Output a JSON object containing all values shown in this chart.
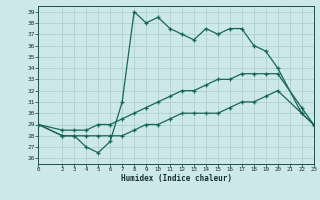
{
  "xlabel": "Humidex (Indice chaleur)",
  "bg_color": "#cce8e8",
  "grid_color": "#aacccc",
  "line_color": "#1a6655",
  "xlim": [
    0,
    23
  ],
  "ylim": [
    26,
    39
  ],
  "yticks": [
    26,
    27,
    28,
    29,
    30,
    31,
    32,
    33,
    34,
    35,
    36,
    37,
    38,
    39
  ],
  "xticks": [
    0,
    2,
    3,
    4,
    5,
    6,
    7,
    8,
    9,
    10,
    11,
    12,
    13,
    14,
    15,
    16,
    17,
    18,
    19,
    20,
    21,
    22,
    23
  ],
  "curve1_x": [
    0,
    2,
    3,
    4,
    5,
    6,
    7,
    8,
    9,
    10,
    11,
    12,
    13,
    14,
    15,
    16,
    17,
    18,
    19,
    20,
    22,
    23
  ],
  "curve1_y": [
    29,
    28,
    28,
    27,
    26.5,
    27.5,
    31,
    39,
    38,
    38.5,
    37.5,
    37,
    36.5,
    37.5,
    37,
    37.5,
    37.5,
    36,
    35.5,
    34,
    30,
    29
  ],
  "curve2_x": [
    0,
    2,
    3,
    4,
    5,
    6,
    7,
    8,
    9,
    10,
    11,
    12,
    13,
    14,
    15,
    16,
    17,
    18,
    19,
    20,
    22,
    23
  ],
  "curve2_y": [
    29,
    28.5,
    28.5,
    28.5,
    29,
    29,
    29.5,
    30,
    30.5,
    31,
    31.5,
    32,
    32,
    32.5,
    33,
    33,
    33.5,
    33.5,
    33.5,
    33.5,
    30.5,
    29
  ],
  "curve3_x": [
    0,
    2,
    3,
    4,
    5,
    6,
    7,
    8,
    9,
    10,
    11,
    12,
    13,
    14,
    15,
    16,
    17,
    18,
    19,
    20,
    22,
    23
  ],
  "curve3_y": [
    29,
    28,
    28,
    28,
    28,
    28,
    28,
    28.5,
    29,
    29,
    29.5,
    30,
    30,
    30,
    30,
    30.5,
    31,
    31,
    31.5,
    32,
    30,
    29
  ]
}
